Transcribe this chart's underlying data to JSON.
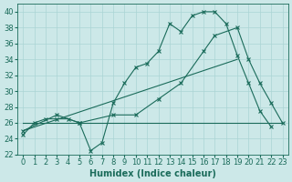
{
  "xlabel": "Humidex (Indice chaleur)",
  "ylabel": "",
  "bg_color": "#cce8e8",
  "line_color": "#1a6b5a",
  "xlim": [
    -0.5,
    23.5
  ],
  "ylim": [
    22,
    41
  ],
  "yticks": [
    22,
    24,
    26,
    28,
    30,
    32,
    34,
    36,
    38,
    40
  ],
  "xticks": [
    0,
    1,
    2,
    3,
    4,
    5,
    6,
    7,
    8,
    9,
    10,
    11,
    12,
    13,
    14,
    15,
    16,
    17,
    18,
    19,
    20,
    21,
    22,
    23
  ],
  "series1_x": [
    0,
    1,
    2,
    3,
    4,
    5,
    6,
    7,
    8,
    9,
    10,
    11,
    12,
    13,
    14,
    15,
    16,
    17,
    18,
    19,
    20,
    21,
    22
  ],
  "series1_y": [
    24.5,
    26,
    26.5,
    26.5,
    26.5,
    26,
    22.5,
    23.5,
    28.5,
    31,
    33,
    33.5,
    35,
    38.5,
    37.5,
    39.5,
    40,
    40,
    38.5,
    34.5,
    31,
    27.5,
    25.5
  ],
  "series2_x": [
    0,
    3,
    5,
    8,
    10,
    12,
    14,
    16,
    17,
    19,
    20,
    21,
    22,
    23
  ],
  "series2_y": [
    25,
    27,
    26,
    27,
    27,
    29,
    31,
    35,
    37,
    38,
    34,
    31,
    28.5,
    26
  ],
  "series3_x": [
    0,
    23
  ],
  "series3_y": [
    26,
    26
  ],
  "series4_x": [
    0,
    19
  ],
  "series4_y": [
    25,
    34
  ],
  "grid_color": "#aad4d4",
  "tick_fontsize": 6,
  "label_fontsize": 7
}
